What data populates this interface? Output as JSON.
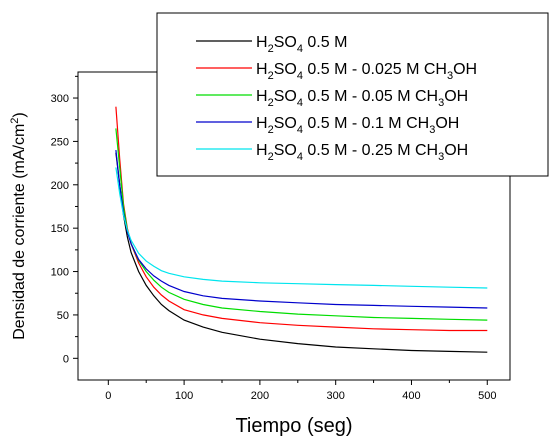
{
  "chart_data": {
    "type": "line",
    "title": "",
    "xlabel": "Tiempo (seg)",
    "ylabel_main": "Densidad de corriente (mA/cm",
    "ylabel_sup": "2",
    "ylabel_end": ")",
    "xlim": [
      -40,
      530
    ],
    "ylim": [
      -25,
      330
    ],
    "xticks": [
      0,
      100,
      200,
      300,
      400,
      500
    ],
    "xtick_labels": [
      "0",
      "100",
      "200",
      "300",
      "400",
      "500"
    ],
    "yticks": [
      0,
      50,
      100,
      150,
      200,
      250,
      300
    ],
    "ytick_labels": [
      "0",
      "50",
      "100",
      "150",
      "200",
      "250",
      "300"
    ],
    "grid": false,
    "legend_position": "top-right",
    "series": [
      {
        "name": "H2SO4 0.5 M",
        "legend": [
          {
            "t": "H",
            "s": ""
          },
          {
            "t": "2",
            "s": "sub"
          },
          {
            "t": "SO",
            "s": ""
          },
          {
            "t": "4",
            "s": "sub"
          },
          {
            "t": " 0.5 M",
            "s": ""
          }
        ],
        "color": "#000000",
        "x": [
          10,
          15,
          20,
          25,
          30,
          40,
          50,
          60,
          70,
          80,
          100,
          125,
          150,
          200,
          250,
          300,
          350,
          400,
          450,
          500
        ],
        "y": [
          237,
          200,
          165,
          140,
          122,
          100,
          84,
          72,
          62,
          55,
          44,
          36,
          30,
          22,
          17,
          13,
          11,
          9,
          8,
          7
        ]
      },
      {
        "name": "H2SO4 0.5 M - 0.025 M CH3OH",
        "legend": [
          {
            "t": "H",
            "s": ""
          },
          {
            "t": "2",
            "s": "sub"
          },
          {
            "t": "SO",
            "s": ""
          },
          {
            "t": "4",
            "s": "sub"
          },
          {
            "t": " 0.5 M - 0.025 M CH",
            "s": ""
          },
          {
            "t": "3",
            "s": "sub"
          },
          {
            "t": "OH",
            "s": ""
          }
        ],
        "color": "#ff0000",
        "x": [
          10,
          15,
          20,
          25,
          30,
          40,
          50,
          60,
          70,
          80,
          100,
          125,
          150,
          200,
          250,
          300,
          350,
          400,
          450,
          500
        ],
        "y": [
          290,
          230,
          178,
          150,
          132,
          110,
          94,
          82,
          73,
          66,
          56,
          50,
          46,
          41,
          38,
          36,
          34,
          33,
          32,
          32
        ]
      },
      {
        "name": "H2SO4 0.5 M - 0.05 M CH3OH",
        "legend": [
          {
            "t": "H",
            "s": ""
          },
          {
            "t": "2",
            "s": "sub"
          },
          {
            "t": "SO",
            "s": ""
          },
          {
            "t": "4",
            "s": "sub"
          },
          {
            "t": " 0.5 M - 0.05 M CH",
            "s": ""
          },
          {
            "t": "3",
            "s": "sub"
          },
          {
            "t": "OH",
            "s": ""
          }
        ],
        "color": "#00dd00",
        "x": [
          10,
          15,
          20,
          25,
          30,
          40,
          50,
          60,
          70,
          80,
          100,
          125,
          150,
          200,
          250,
          300,
          350,
          400,
          450,
          500
        ],
        "y": [
          265,
          220,
          175,
          148,
          132,
          113,
          100,
          90,
          82,
          76,
          68,
          62,
          58,
          54,
          51,
          49,
          47,
          46,
          45,
          44
        ]
      },
      {
        "name": "H2SO4 0.5 M - 0.1 M CH3OH",
        "legend": [
          {
            "t": "H",
            "s": ""
          },
          {
            "t": "2",
            "s": "sub"
          },
          {
            "t": "SO",
            "s": ""
          },
          {
            "t": "4",
            "s": "sub"
          },
          {
            "t": " 0.5 M - 0.1 M CH",
            "s": ""
          },
          {
            "t": "3",
            "s": "sub"
          },
          {
            "t": "OH",
            "s": ""
          }
        ],
        "color": "#0000cc",
        "x": [
          10,
          15,
          20,
          25,
          30,
          40,
          50,
          60,
          70,
          80,
          100,
          125,
          150,
          200,
          250,
          300,
          350,
          400,
          450,
          500
        ],
        "y": [
          240,
          200,
          168,
          146,
          132,
          114,
          103,
          95,
          89,
          84,
          77,
          72,
          69,
          66,
          64,
          62,
          61,
          60,
          59,
          58
        ]
      },
      {
        "name": "H2SO4 0.5 M - 0.25 M CH3OH",
        "legend": [
          {
            "t": "H",
            "s": ""
          },
          {
            "t": "2",
            "s": "sub"
          },
          {
            "t": "SO",
            "s": ""
          },
          {
            "t": "4",
            "s": "sub"
          },
          {
            "t": " 0.5 M - 0.25 M CH",
            "s": ""
          },
          {
            "t": "3",
            "s": "sub"
          },
          {
            "t": "OH",
            "s": ""
          }
        ],
        "color": "#00e5ee",
        "x": [
          10,
          15,
          20,
          25,
          30,
          40,
          50,
          60,
          70,
          80,
          100,
          125,
          150,
          200,
          250,
          300,
          350,
          400,
          450,
          500
        ],
        "y": [
          220,
          190,
          165,
          148,
          136,
          121,
          112,
          106,
          101,
          98,
          94,
          91,
          89,
          87,
          86,
          85,
          84,
          83,
          82,
          81
        ]
      }
    ]
  }
}
